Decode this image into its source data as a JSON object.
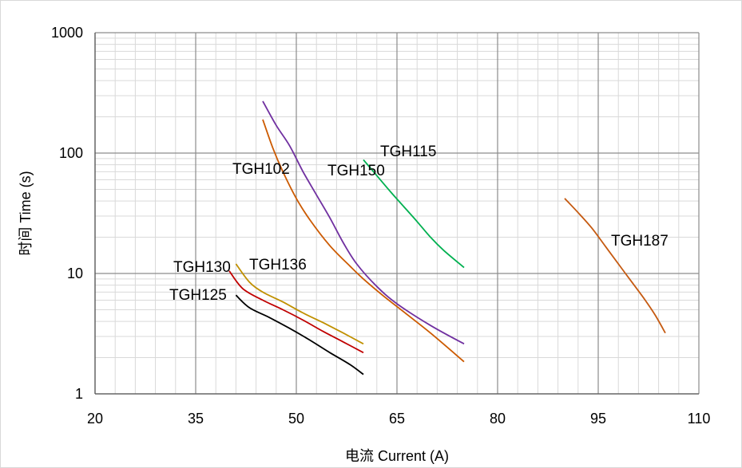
{
  "chart_data": {
    "type": "line",
    "title": "",
    "xlabel": "电流 Current (A)",
    "ylabel": "时间 Time (s)",
    "x_scale": "linear",
    "y_scale": "log",
    "xlim": [
      20,
      110
    ],
    "ylim": [
      1,
      1000
    ],
    "x_ticks": [
      20,
      35,
      50,
      65,
      80,
      95,
      110
    ],
    "y_ticks": [
      1,
      10,
      100,
      1000
    ],
    "x_tick_labels": [
      "20",
      "35",
      "50",
      "65",
      "80",
      "95",
      "110"
    ],
    "y_tick_labels": [
      "1",
      "10",
      "100",
      "1000"
    ],
    "grid": true,
    "legend": "none",
    "series": [
      {
        "name": "TGH102",
        "color": "#cc5a00",
        "points": [
          [
            45,
            190
          ],
          [
            46.5,
            110
          ],
          [
            48,
            70
          ],
          [
            50,
            42
          ],
          [
            52,
            28
          ],
          [
            55,
            17
          ],
          [
            58,
            11.5
          ],
          [
            60,
            9
          ],
          [
            63,
            6.5
          ],
          [
            66,
            4.8
          ],
          [
            70,
            3.2
          ],
          [
            75,
            1.85
          ]
        ]
      },
      {
        "name": "TGH150",
        "color": "#7030a0",
        "points": [
          [
            45,
            270
          ],
          [
            47,
            170
          ],
          [
            49,
            115
          ],
          [
            51,
            70
          ],
          [
            53,
            45
          ],
          [
            55,
            29
          ],
          [
            57,
            18
          ],
          [
            59,
            12
          ],
          [
            62,
            7.8
          ],
          [
            65,
            5.6
          ],
          [
            70,
            3.7
          ],
          [
            75,
            2.6
          ]
        ]
      },
      {
        "name": "TGH115",
        "color": "#00b050",
        "points": [
          [
            60,
            88
          ],
          [
            62,
            65
          ],
          [
            64,
            48
          ],
          [
            66,
            36
          ],
          [
            68,
            27
          ],
          [
            70,
            20
          ],
          [
            72,
            15.5
          ],
          [
            75,
            11.2
          ]
        ]
      },
      {
        "name": "TGH187",
        "color": "#c55a11",
        "points": [
          [
            90,
            42
          ],
          [
            92,
            32
          ],
          [
            94,
            24
          ],
          [
            96,
            17
          ],
          [
            98,
            12
          ],
          [
            100,
            8.5
          ],
          [
            102,
            6
          ],
          [
            103.5,
            4.5
          ],
          [
            105,
            3.2
          ]
        ]
      },
      {
        "name": "TGH136",
        "color": "#c09000",
        "points": [
          [
            41,
            12
          ],
          [
            43,
            8.5
          ],
          [
            45,
            7
          ],
          [
            48,
            5.8
          ],
          [
            51,
            4.7
          ],
          [
            54,
            3.9
          ],
          [
            57,
            3.2
          ],
          [
            60,
            2.6
          ]
        ]
      },
      {
        "name": "TGH130",
        "color": "#c00000",
        "points": [
          [
            40,
            10.5
          ],
          [
            42,
            7.5
          ],
          [
            45,
            6
          ],
          [
            48,
            5
          ],
          [
            51,
            4.1
          ],
          [
            54,
            3.3
          ],
          [
            57,
            2.7
          ],
          [
            60,
            2.2
          ]
        ]
      },
      {
        "name": "TGH125",
        "color": "#000000",
        "points": [
          [
            41,
            6.6
          ],
          [
            43,
            5.2
          ],
          [
            46,
            4.3
          ],
          [
            49,
            3.5
          ],
          [
            52,
            2.8
          ],
          [
            55,
            2.2
          ],
          [
            58,
            1.75
          ],
          [
            60,
            1.45
          ]
        ]
      }
    ]
  }
}
